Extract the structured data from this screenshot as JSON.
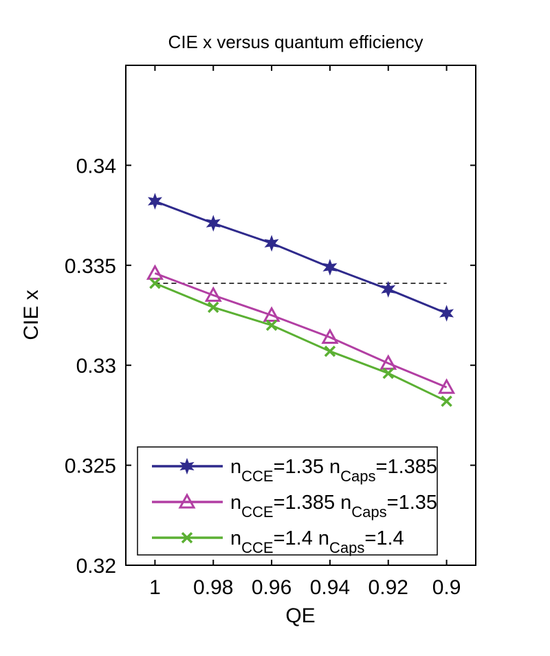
{
  "chart_data": {
    "type": "line",
    "title": "CIE x versus quantum efficiency",
    "xlabel": "QE",
    "ylabel": "CIE x",
    "xlim": [
      1.01,
      0.89
    ],
    "x_reversed": true,
    "ylim": [
      0.32,
      0.345
    ],
    "xticks": [
      1,
      0.98,
      0.96,
      0.94,
      0.92,
      0.9
    ],
    "xtick_labels": [
      "1",
      "0.98",
      "0.96",
      "0.94",
      "0.92",
      "0.9"
    ],
    "yticks": [
      0.32,
      0.325,
      0.33,
      0.335,
      0.34
    ],
    "ytick_labels": [
      "0.32",
      "0.325",
      "0.33",
      "0.335",
      "0.34"
    ],
    "grid": false,
    "legend_placement": "bottom",
    "x": [
      1,
      0.98,
      0.96,
      0.94,
      0.92,
      0.9
    ],
    "series": [
      {
        "name": "nCCE=1.35 nCaps=1.385",
        "label": {
          "a": "n",
          "a_sub": "CCE",
          "b": "=1.35 n",
          "b_sub": "Caps",
          "c": "=1.385"
        },
        "marker": "star",
        "color": "#2f2a8c",
        "values": [
          0.3382,
          0.3371,
          0.3361,
          0.3349,
          0.3338,
          0.3326
        ]
      },
      {
        "name": "nCCE=1.385 nCaps=1.35",
        "label": {
          "a": "n",
          "a_sub": "CCE",
          "b": "=1.385 n",
          "b_sub": "Caps",
          "c": "=1.35"
        },
        "marker": "triangle",
        "color": "#b23fa3",
        "values": [
          0.3346,
          0.3335,
          0.3325,
          0.3314,
          0.3301,
          0.3289
        ]
      },
      {
        "name": "nCCE=1.4 nCaps=1.4",
        "label": {
          "a": "n",
          "a_sub": "CCE",
          "b": "=1.4 n",
          "b_sub": "Caps",
          "c": "=1.4"
        },
        "marker": "x",
        "color": "#5bb033",
        "values": [
          0.3341,
          0.3329,
          0.332,
          0.3307,
          0.3296,
          0.3282
        ]
      }
    ],
    "reference_line": {
      "style": "dashed",
      "color": "#000000",
      "y": 0.3341,
      "x_range": [
        1,
        0.9
      ]
    }
  }
}
